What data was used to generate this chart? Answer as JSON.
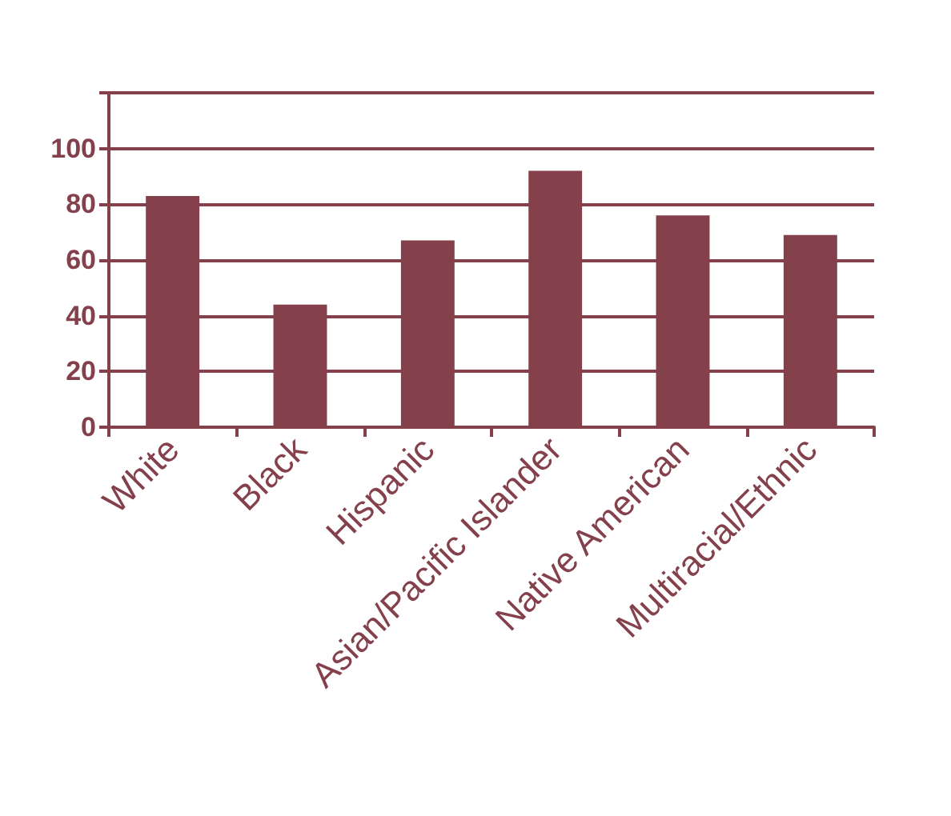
{
  "chart_data": {
    "type": "bar",
    "categories": [
      "White",
      "Black",
      "Hispanic",
      "Asian/Pacific Islander",
      "Native American",
      "Multiracial/Ethnic"
    ],
    "values": [
      83,
      44,
      67,
      92,
      76,
      69
    ],
    "color": "#84404b",
    "ylim": [
      0,
      120
    ],
    "yticks": [
      0,
      20,
      40,
      60,
      80,
      100,
      {
        "value": 120,
        "label": null
      }
    ],
    "grid": "y"
  }
}
